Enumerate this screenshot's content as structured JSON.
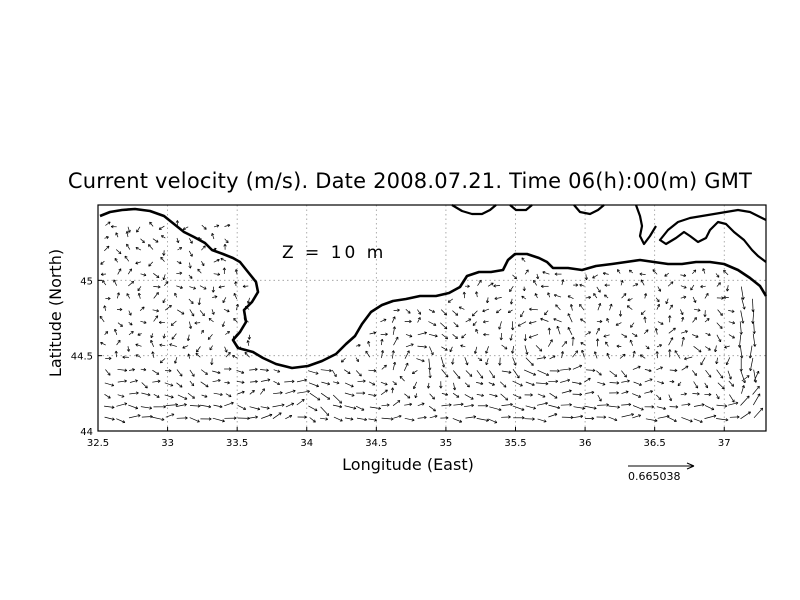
{
  "chart_data": {
    "type": "vector-field-map",
    "title": "Current velocity (m/s). Date 2008.07.21. Time 06(h):00(m) GMT",
    "annotation": "Z = 10 m",
    "xlabel": "Longitude (East)",
    "ylabel": "Latitude (North)",
    "xlim": [
      32.5,
      37.3
    ],
    "ylim": [
      44.0,
      45.5
    ],
    "x_ticks": [
      32.5,
      33,
      33.5,
      34,
      34.5,
      35,
      35.5,
      36,
      36.5,
      37
    ],
    "x_tick_labels": [
      "32.5",
      "33",
      "33.5",
      "34",
      "34.5",
      "35",
      "35.5",
      "36",
      "36.5",
      "37"
    ],
    "y_ticks": [
      44,
      44.5,
      45
    ],
    "y_tick_labels": [
      "44",
      "44.5",
      "45"
    ],
    "grid": "dotted",
    "reference_vector": {
      "value": "0.665038",
      "speed": 0.665038
    },
    "colors": {
      "arrows": "#000000",
      "coastline": "#000000",
      "grid": "#999999"
    }
  }
}
